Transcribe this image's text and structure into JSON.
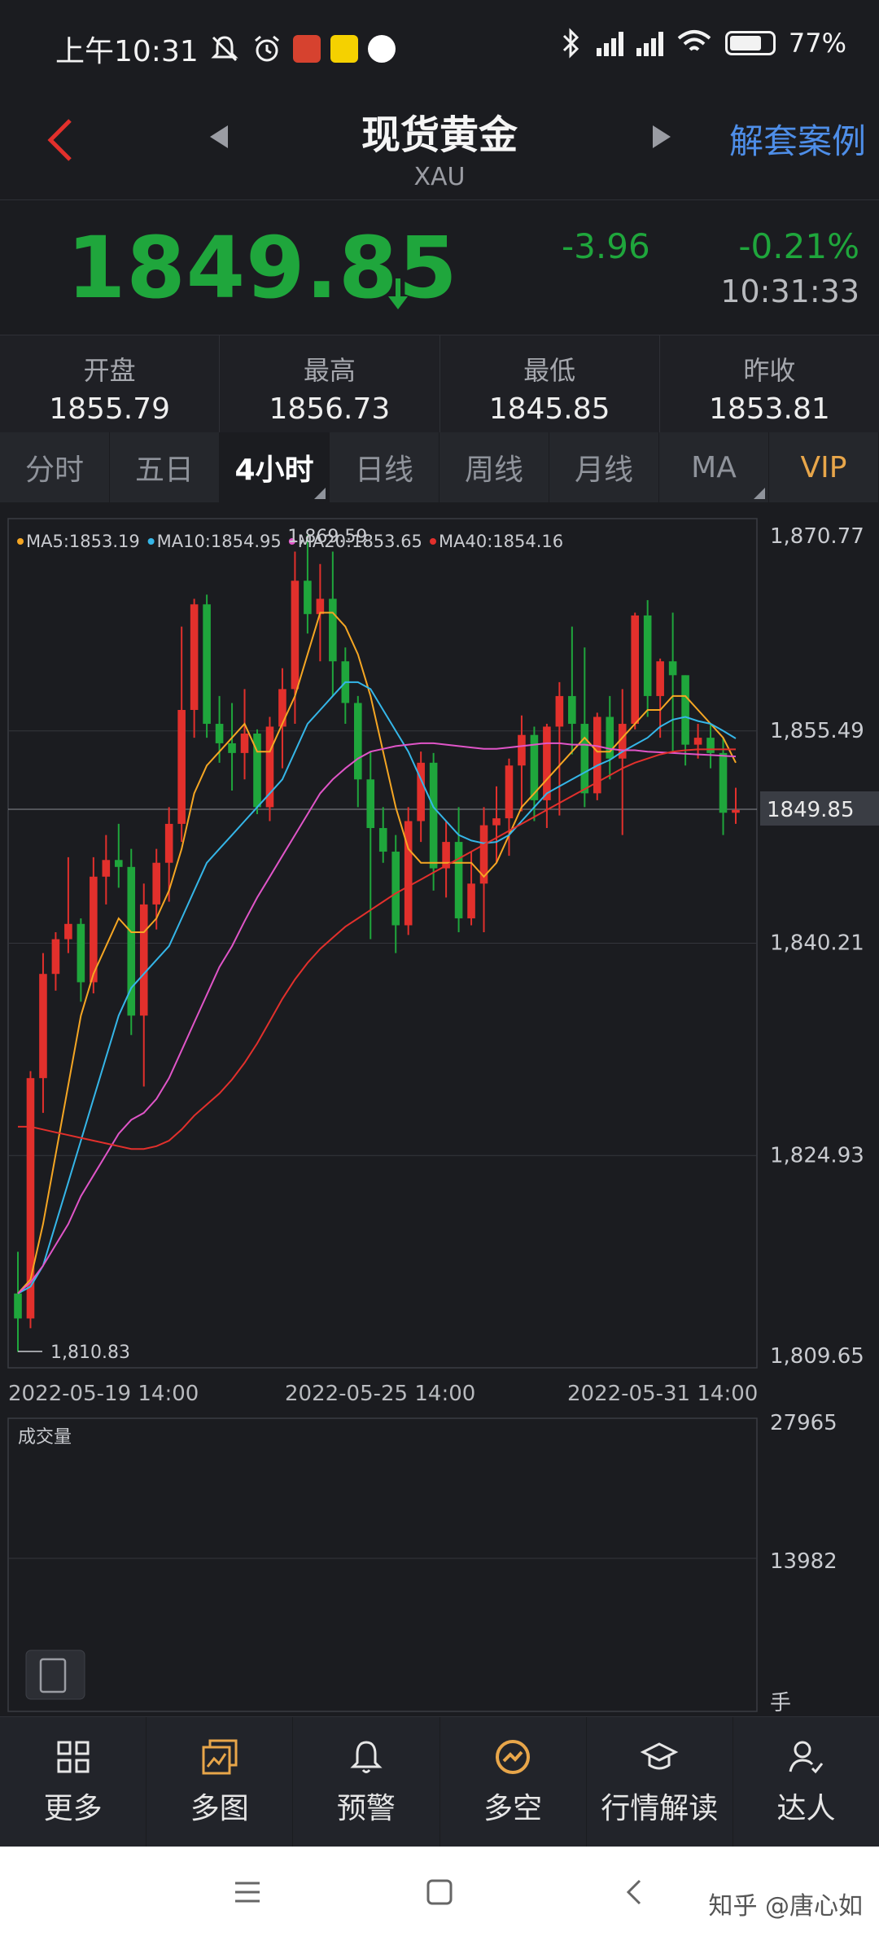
{
  "status_bar": {
    "time": "上午10:31",
    "battery": "77%",
    "battery_level": 0.77
  },
  "header": {
    "title": "现货黄金",
    "subtitle": "XAU",
    "right_link": "解套案例"
  },
  "quote": {
    "price": "1849.85",
    "change": "-3.96",
    "change_pct": "-0.21%",
    "time": "10:31:33",
    "direction": "down",
    "color_down": "#1fa63c",
    "color_up": "#e2302c"
  },
  "stats": [
    {
      "label": "开盘",
      "value": "1855.79"
    },
    {
      "label": "最高",
      "value": "1856.73"
    },
    {
      "label": "最低",
      "value": "1845.85"
    },
    {
      "label": "昨收",
      "value": "1853.81"
    }
  ],
  "tabs": [
    "分时",
    "五日",
    "4小时",
    "日线",
    "周线",
    "月线",
    "MA",
    "VIP"
  ],
  "active_tab": "4小时",
  "chart_data": {
    "type": "candlestick",
    "ma_legend": [
      {
        "label": "MA5:1853.19",
        "color": "#f5a623"
      },
      {
        "label": "MA10:1854.95",
        "color": "#35b6e8"
      },
      {
        "label": "MA20:1853.65",
        "color": "#e055c8"
      },
      {
        "label": "MA40:1854.16",
        "color": "#e2302c"
      }
    ],
    "y_ticks": [
      "1,870.77",
      "1,855.49",
      "1,840.21",
      "1,824.93",
      "1,809.65"
    ],
    "y_tick_values": [
      1870.77,
      1855.49,
      1840.21,
      1824.93,
      1809.65
    ],
    "ylim": [
      1809.65,
      1870.77
    ],
    "current_price_label": "1849.85",
    "current_price": 1849.85,
    "high_marker": {
      "label": "1,869.59",
      "value": 1869.59
    },
    "low_marker": {
      "label": "1,810.83",
      "value": 1810.83
    },
    "x_labels": [
      "2022-05-19 14:00",
      "2022-05-25 14:00",
      "2022-05-31 14:00"
    ],
    "candles": [
      [
        1815.0,
        1813.2,
        1818.0,
        1810.8
      ],
      [
        1813.2,
        1830.5,
        1831.0,
        1812.5
      ],
      [
        1830.5,
        1838.0,
        1839.5,
        1828.0
      ],
      [
        1838.0,
        1840.5,
        1841.0,
        1836.8
      ],
      [
        1840.5,
        1841.6,
        1846.4,
        1839.5
      ],
      [
        1841.6,
        1837.4,
        1842.0,
        1836.0
      ],
      [
        1837.4,
        1845.0,
        1846.4,
        1836.6
      ],
      [
        1845.0,
        1846.2,
        1848.0,
        1843.0
      ],
      [
        1846.2,
        1845.7,
        1848.8,
        1844.2
      ],
      [
        1845.7,
        1835.0,
        1847.0,
        1833.6
      ],
      [
        1835.0,
        1843.0,
        1844.5,
        1829.9
      ],
      [
        1843.0,
        1846.0,
        1847.0,
        1841.2
      ],
      [
        1846.0,
        1848.8,
        1850.0,
        1843.2
      ],
      [
        1848.8,
        1857.0,
        1863.0,
        1847.5
      ],
      [
        1857.0,
        1864.6,
        1865.0,
        1855.0
      ],
      [
        1864.6,
        1856.0,
        1865.3,
        1855.0
      ],
      [
        1856.0,
        1854.6,
        1858.0,
        1853.2
      ],
      [
        1854.6,
        1853.9,
        1857.5,
        1851.2
      ],
      [
        1853.9,
        1855.3,
        1858.5,
        1852.0
      ],
      [
        1855.3,
        1850.0,
        1855.6,
        1849.5
      ],
      [
        1850.0,
        1855.8,
        1856.5,
        1849.0
      ],
      [
        1855.8,
        1858.5,
        1860.0,
        1852.8
      ],
      [
        1858.5,
        1866.3,
        1868.4,
        1856.0
      ],
      [
        1866.3,
        1863.9,
        1869.6,
        1862.5
      ],
      [
        1863.9,
        1865.0,
        1867.5,
        1860.5
      ],
      [
        1865.0,
        1860.5,
        1868.4,
        1858.0
      ],
      [
        1860.5,
        1857.5,
        1861.5,
        1856.0
      ],
      [
        1857.5,
        1852.0,
        1858.0,
        1850.0
      ],
      [
        1852.0,
        1848.5,
        1854.0,
        1840.5
      ],
      [
        1848.5,
        1846.8,
        1850.0,
        1846.0
      ],
      [
        1846.8,
        1841.5,
        1848.0,
        1839.5
      ],
      [
        1841.5,
        1849.0,
        1850.0,
        1840.8
      ],
      [
        1849.0,
        1853.2,
        1854.0,
        1847.5
      ],
      [
        1853.2,
        1845.6,
        1853.9,
        1844.0
      ],
      [
        1845.6,
        1847.5,
        1849.0,
        1843.5
      ],
      [
        1847.5,
        1842.0,
        1850.0,
        1841.0
      ],
      [
        1842.0,
        1844.5,
        1846.8,
        1841.5
      ],
      [
        1844.5,
        1848.7,
        1850.0,
        1841.0
      ],
      [
        1848.7,
        1849.2,
        1851.5,
        1846.0
      ],
      [
        1849.2,
        1853.0,
        1853.5,
        1846.5
      ],
      [
        1853.0,
        1855.2,
        1856.6,
        1849.7
      ],
      [
        1855.2,
        1850.5,
        1855.8,
        1849.0
      ],
      [
        1850.5,
        1855.8,
        1856.0,
        1848.5
      ],
      [
        1855.8,
        1858.0,
        1859.0,
        1849.4
      ],
      [
        1858.0,
        1856.0,
        1863.0,
        1853.8
      ],
      [
        1856.0,
        1851.0,
        1861.5,
        1850.0
      ],
      [
        1851.0,
        1856.5,
        1856.8,
        1850.5
      ],
      [
        1856.5,
        1853.5,
        1858.0,
        1852.0
      ],
      [
        1853.5,
        1856.0,
        1858.5,
        1848.0
      ],
      [
        1856.0,
        1863.8,
        1864.0,
        1855.6
      ],
      [
        1863.8,
        1858.0,
        1864.9,
        1856.5
      ],
      [
        1858.0,
        1860.5,
        1860.7,
        1855.0
      ],
      [
        1860.5,
        1859.5,
        1864.0,
        1854.0
      ],
      [
        1859.5,
        1854.5,
        1859.5,
        1853.0
      ],
      [
        1854.5,
        1855.0,
        1856.0,
        1853.5
      ],
      [
        1855.0,
        1853.9,
        1856.0,
        1852.8
      ],
      [
        1853.9,
        1849.6,
        1855.0,
        1848.0
      ],
      [
        1849.6,
        1849.8,
        1851.4,
        1848.8
      ]
    ],
    "ma5": [
      1815,
      1816,
      1820,
      1825,
      1830,
      1835,
      1838,
      1840,
      1842,
      1841,
      1841,
      1842,
      1844,
      1847,
      1851,
      1853,
      1854,
      1855,
      1856,
      1854,
      1854,
      1856,
      1858,
      1861,
      1864,
      1864,
      1863,
      1861,
      1858,
      1854,
      1850,
      1847,
      1846,
      1846,
      1846,
      1846,
      1846,
      1845,
      1846,
      1848,
      1850,
      1851,
      1852,
      1853,
      1854,
      1855,
      1854,
      1854,
      1855,
      1856,
      1857,
      1857,
      1858,
      1858,
      1857,
      1856,
      1855,
      1853.2
    ],
    "ma10": [
      1815,
      1815.5,
      1817,
      1820,
      1823,
      1826,
      1829,
      1832,
      1835,
      1837,
      1838,
      1839,
      1840,
      1842,
      1844,
      1846,
      1847,
      1848,
      1849,
      1850,
      1851,
      1852,
      1854,
      1856,
      1857,
      1858,
      1859,
      1859,
      1858.5,
      1857,
      1855.5,
      1854,
      1852,
      1850,
      1849,
      1848,
      1847.6,
      1847.4,
      1847.5,
      1848,
      1849,
      1850,
      1851,
      1851.5,
      1852,
      1852.5,
      1853,
      1853.4,
      1854,
      1854.5,
      1855,
      1855.8,
      1856.3,
      1856.5,
      1856.2,
      1856,
      1855.5,
      1854.95
    ],
    "ma20": [
      1815,
      1815.8,
      1817,
      1818.5,
      1820,
      1822,
      1823.5,
      1825,
      1826.5,
      1827.5,
      1828,
      1829,
      1830.5,
      1832.5,
      1834.5,
      1836.5,
      1838.5,
      1840,
      1841.8,
      1843.5,
      1845,
      1846.5,
      1848,
      1849.5,
      1851,
      1852,
      1852.8,
      1853.5,
      1854,
      1854.2,
      1854.4,
      1854.5,
      1854.6,
      1854.6,
      1854.5,
      1854.4,
      1854.3,
      1854.2,
      1854.2,
      1854.3,
      1854.4,
      1854.5,
      1854.6,
      1854.6,
      1854.5,
      1854.5,
      1854.4,
      1854.2,
      1854.1,
      1854.1,
      1854,
      1853.95,
      1853.9,
      1853.85,
      1853.8,
      1853.75,
      1853.7,
      1853.65
    ],
    "ma40": [
      1827,
      1827,
      1826.8,
      1826.6,
      1826.4,
      1826.2,
      1826,
      1825.8,
      1825.6,
      1825.4,
      1825.4,
      1825.6,
      1826,
      1826.8,
      1827.8,
      1828.6,
      1829.4,
      1830.4,
      1831.6,
      1833,
      1834.6,
      1836.2,
      1837.6,
      1838.8,
      1839.8,
      1840.6,
      1841.4,
      1842,
      1842.6,
      1843.2,
      1843.8,
      1844.3,
      1844.8,
      1845.3,
      1845.8,
      1846.3,
      1846.8,
      1847.3,
      1847.8,
      1848.3,
      1848.8,
      1849.3,
      1849.8,
      1850.3,
      1850.8,
      1851.3,
      1851.8,
      1852.3,
      1852.8,
      1853.2,
      1853.5,
      1853.8,
      1854,
      1854.1,
      1854.16,
      1854.16,
      1854.16,
      1854.16
    ],
    "volume_label": "成交量",
    "volume_ticks": [
      "27965",
      "13982"
    ],
    "volume_unit": "手"
  },
  "bottom_nav": [
    {
      "label": "更多",
      "icon": "grid-icon"
    },
    {
      "label": "多图",
      "icon": "multi-chart-icon"
    },
    {
      "label": "预警",
      "icon": "bell-icon"
    },
    {
      "label": "多空",
      "icon": "trend-icon"
    },
    {
      "label": "行情解读",
      "icon": "graduation-icon"
    },
    {
      "label": "达人",
      "icon": "expert-icon"
    }
  ],
  "watermark": "知乎 @唐心如"
}
